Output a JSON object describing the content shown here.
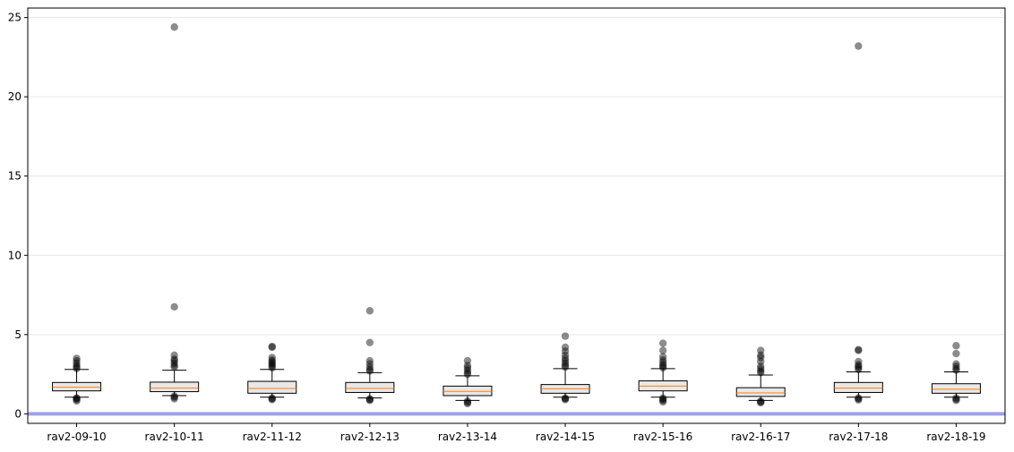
{
  "chart_data": {
    "type": "box",
    "title": "",
    "xlabel": "",
    "ylabel": "",
    "categories": [
      "rav2-09-10",
      "rav2-10-11",
      "rav2-11-12",
      "rav2-12-13",
      "rav2-13-14",
      "rav2-14-15",
      "rav2-15-16",
      "rav2-16-17",
      "rav2-17-18",
      "rav2-18-19"
    ],
    "ylim": [
      -0.6,
      25.6
    ],
    "yticks": [
      0,
      5,
      10,
      15,
      20,
      25
    ],
    "ytick_labels": [
      "0",
      "5",
      "10",
      "15",
      "20",
      "25"
    ],
    "grid": "horizontal",
    "reference_line": {
      "y": 0,
      "color": "#a0a0ee"
    },
    "box_fill": "#e8e8e8",
    "median_color": "#ff7f0e",
    "outlier_color": "#000000",
    "boxes": [
      {
        "q1": 1.45,
        "median": 1.68,
        "q3": 1.98,
        "whisker_low": 1.05,
        "whisker_high": 2.8,
        "outliers": [
          0.82,
          0.9,
          0.98,
          1.0,
          2.85,
          2.95,
          3.05,
          3.2,
          3.35,
          3.5
        ]
      },
      {
        "q1": 1.4,
        "median": 1.62,
        "q3": 2.0,
        "whisker_low": 1.15,
        "whisker_high": 2.75,
        "outliers": [
          0.95,
          1.05,
          1.12,
          2.95,
          3.05,
          3.2,
          3.35,
          3.45,
          3.7,
          6.75,
          24.4
        ]
      },
      {
        "q1": 1.3,
        "median": 1.6,
        "q3": 2.05,
        "whisker_low": 1.05,
        "whisker_high": 2.8,
        "outliers": [
          0.9,
          0.95,
          1.0,
          2.9,
          3.0,
          3.1,
          3.2,
          3.3,
          3.4,
          3.55,
          4.2,
          4.25
        ]
      },
      {
        "q1": 1.35,
        "median": 1.6,
        "q3": 1.98,
        "whisker_low": 1.0,
        "whisker_high": 2.6,
        "outliers": [
          0.85,
          0.9,
          0.95,
          2.7,
          2.8,
          2.95,
          3.15,
          3.35,
          4.5,
          6.5
        ]
      },
      {
        "q1": 1.15,
        "median": 1.42,
        "q3": 1.75,
        "whisker_low": 0.85,
        "whisker_high": 2.4,
        "outliers": [
          0.65,
          0.72,
          0.8,
          2.5,
          2.6,
          2.75,
          2.9,
          3.05,
          3.35
        ]
      },
      {
        "q1": 1.3,
        "median": 1.58,
        "q3": 1.85,
        "whisker_low": 1.05,
        "whisker_high": 2.85,
        "outliers": [
          0.9,
          0.95,
          1.0,
          2.95,
          3.05,
          3.2,
          3.35,
          3.5,
          3.7,
          3.95,
          4.2,
          4.9
        ]
      },
      {
        "q1": 1.45,
        "median": 1.75,
        "q3": 2.08,
        "whisker_low": 1.05,
        "whisker_high": 2.85,
        "outliers": [
          0.75,
          0.85,
          0.92,
          1.0,
          2.9,
          3.0,
          3.1,
          3.25,
          3.4,
          3.6,
          4.0,
          4.45
        ]
      },
      {
        "q1": 1.1,
        "median": 1.32,
        "q3": 1.65,
        "whisker_low": 0.85,
        "whisker_high": 2.45,
        "outliers": [
          0.7,
          0.75,
          0.8,
          2.6,
          2.7,
          2.85,
          3.0,
          3.3,
          3.55,
          3.7,
          4.0
        ]
      },
      {
        "q1": 1.35,
        "median": 1.62,
        "q3": 1.98,
        "whisker_low": 1.05,
        "whisker_high": 2.65,
        "outliers": [
          0.88,
          0.95,
          1.0,
          2.8,
          2.9,
          3.0,
          3.1,
          3.3,
          4.0,
          4.05,
          23.2
        ]
      },
      {
        "q1": 1.3,
        "median": 1.55,
        "q3": 1.9,
        "whisker_low": 1.05,
        "whisker_high": 2.65,
        "outliers": [
          0.85,
          0.92,
          1.0,
          2.75,
          2.85,
          3.0,
          3.15,
          3.8,
          4.3
        ]
      }
    ]
  }
}
